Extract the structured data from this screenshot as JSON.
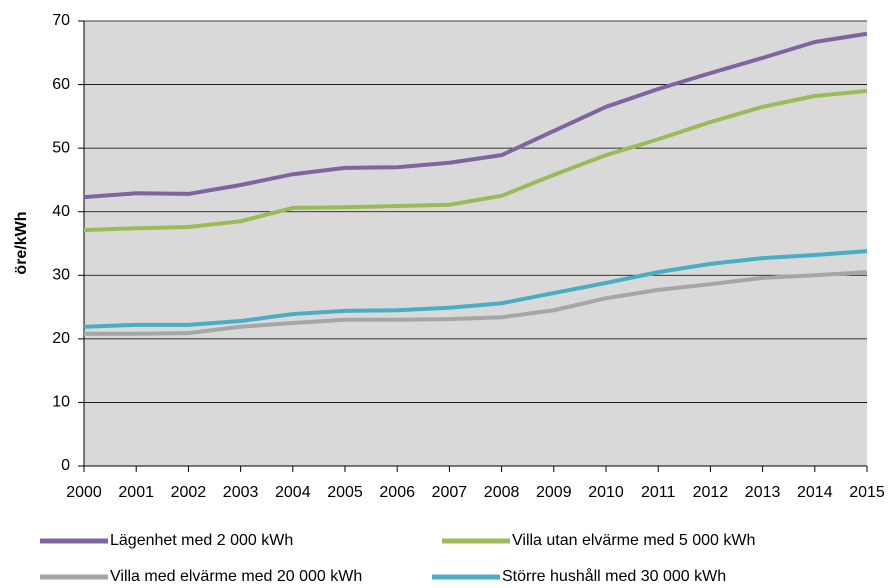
{
  "chart_data": {
    "type": "line",
    "y_label": "öre/kWh",
    "x": [
      2000,
      2001,
      2002,
      2003,
      2004,
      2005,
      2006,
      2007,
      2008,
      2009,
      2010,
      2011,
      2012,
      2013,
      2014,
      2015
    ],
    "series": [
      {
        "name": "Lägenhet med 2 000 kWh",
        "color": "#8064a2",
        "values": [
          42.3,
          42.9,
          42.8,
          44.2,
          45.9,
          46.9,
          47.0,
          47.7,
          48.9,
          52.7,
          56.5,
          59.3,
          61.8,
          64.2,
          66.7,
          68.0
        ]
      },
      {
        "name": "Villa utan elvärme med 5 000 kWh",
        "color": "#9bbb59",
        "values": [
          37.1,
          37.4,
          37.6,
          38.5,
          40.6,
          40.7,
          40.9,
          41.1,
          42.5,
          45.8,
          48.9,
          51.4,
          54.1,
          56.5,
          58.2,
          59.0
        ]
      },
      {
        "name": "Villa med elvärme med 20 000 kWh",
        "color": "#a6a6a6",
        "values": [
          20.8,
          20.8,
          20.9,
          21.9,
          22.5,
          23.0,
          23.0,
          23.1,
          23.4,
          24.5,
          26.4,
          27.7,
          28.6,
          29.6,
          30.0,
          30.5
        ]
      },
      {
        "name": "Större hushåll med 30 000 kWh",
        "color": "#4bacc6",
        "values": [
          21.9,
          22.2,
          22.2,
          22.8,
          23.9,
          24.4,
          24.5,
          24.9,
          25.6,
          27.2,
          28.8,
          30.5,
          31.8,
          32.7,
          33.2,
          33.8
        ]
      }
    ],
    "xlim": [
      2000,
      2015
    ],
    "xticks": [
      2000,
      2001,
      2002,
      2003,
      2004,
      2005,
      2006,
      2007,
      2008,
      2009,
      2010,
      2011,
      2012,
      2013,
      2014,
      2015
    ],
    "ylim": [
      0,
      70
    ],
    "yticks": [
      0,
      10,
      20,
      30,
      40,
      50,
      60,
      70
    ],
    "grid": true,
    "plot_background": "#d9d9d9"
  }
}
